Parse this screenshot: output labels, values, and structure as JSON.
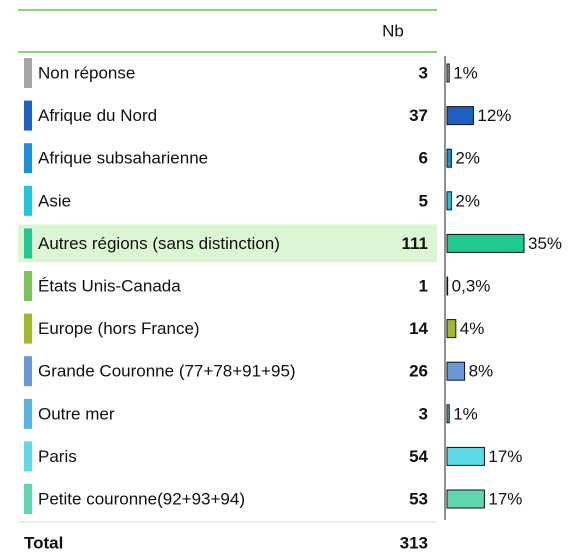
{
  "chart_data": {
    "type": "bar",
    "column_header": "Nb",
    "categories": [
      "Non réponse",
      "Afrique du Nord",
      "Afrique subsaharienne",
      "Asie",
      "Autres régions (sans distinction)",
      "États Unis-Canada",
      "Europe (hors France)",
      "Grande Couronne (77+78+91+95)",
      "Outre mer",
      "Paris",
      "Petite couronne(92+93+94)"
    ],
    "counts": [
      3,
      37,
      6,
      5,
      111,
      1,
      14,
      26,
      3,
      54,
      53
    ],
    "values": [
      1,
      12,
      2,
      2,
      35,
      0.3,
      4,
      8,
      1,
      17,
      17
    ],
    "value_labels": [
      "1%",
      "12%",
      "2%",
      "2%",
      "35%",
      "0,3%",
      "4%",
      "8%",
      "1%",
      "17%",
      "17%"
    ],
    "colors": [
      "#a6a6a6",
      "#1f5fbf",
      "#1e8fd6",
      "#22c4de",
      "#1fc98f",
      "#7cc25a",
      "#a4b82e",
      "#6a98d6",
      "#58b6de",
      "#5edbe6",
      "#5ed6ae"
    ],
    "highlight": 4,
    "total_label": "Total",
    "total": 313
  }
}
